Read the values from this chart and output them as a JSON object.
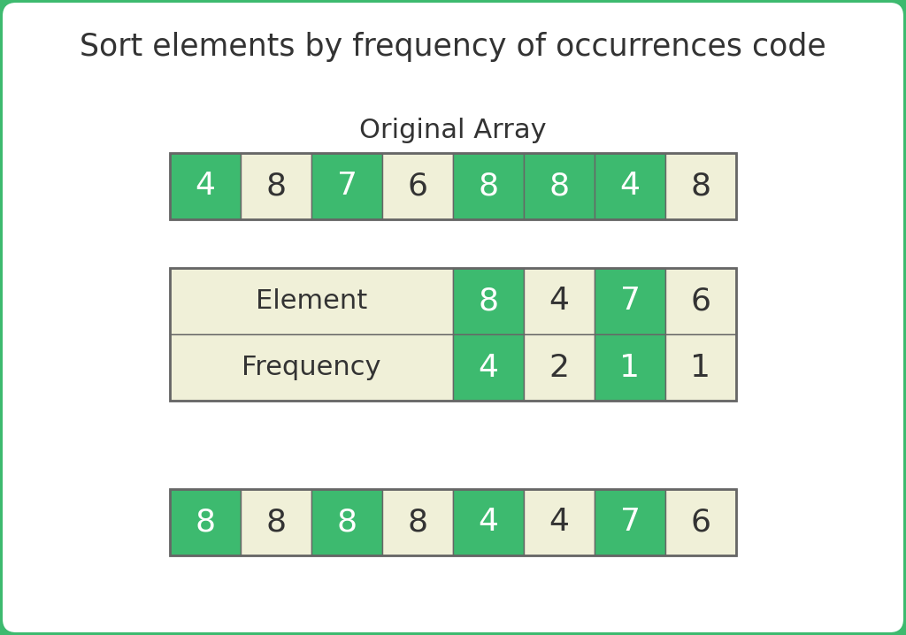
{
  "title": "Sort elements by frequency of occurrences code",
  "original_array_label": "Original Array",
  "original_array": [
    4,
    8,
    7,
    6,
    8,
    8,
    4,
    8
  ],
  "original_colors": [
    "green",
    "cream",
    "green",
    "cream",
    "green",
    "green",
    "green",
    "cream"
  ],
  "table_elements": [
    8,
    4,
    7,
    6
  ],
  "table_frequencies": [
    4,
    2,
    1,
    1
  ],
  "table_element_colors": [
    "green",
    "cream",
    "green",
    "cream"
  ],
  "table_freq_colors": [
    "green",
    "cream",
    "green",
    "cream"
  ],
  "sorted_array": [
    8,
    8,
    8,
    8,
    4,
    4,
    7,
    6
  ],
  "sorted_colors": [
    "green",
    "cream",
    "green",
    "cream",
    "green",
    "cream",
    "green",
    "cream"
  ],
  "green_color": "#3dba6f",
  "cream_color": "#f0f0d8",
  "white_text": "#ffffff",
  "dark_text": "#333333",
  "border_color": "#666666",
  "bg_color": "#ffffff",
  "outer_border_color": "#3dba6f",
  "title_fontsize": 25,
  "label_fontsize": 20,
  "cell_fontsize": 26
}
